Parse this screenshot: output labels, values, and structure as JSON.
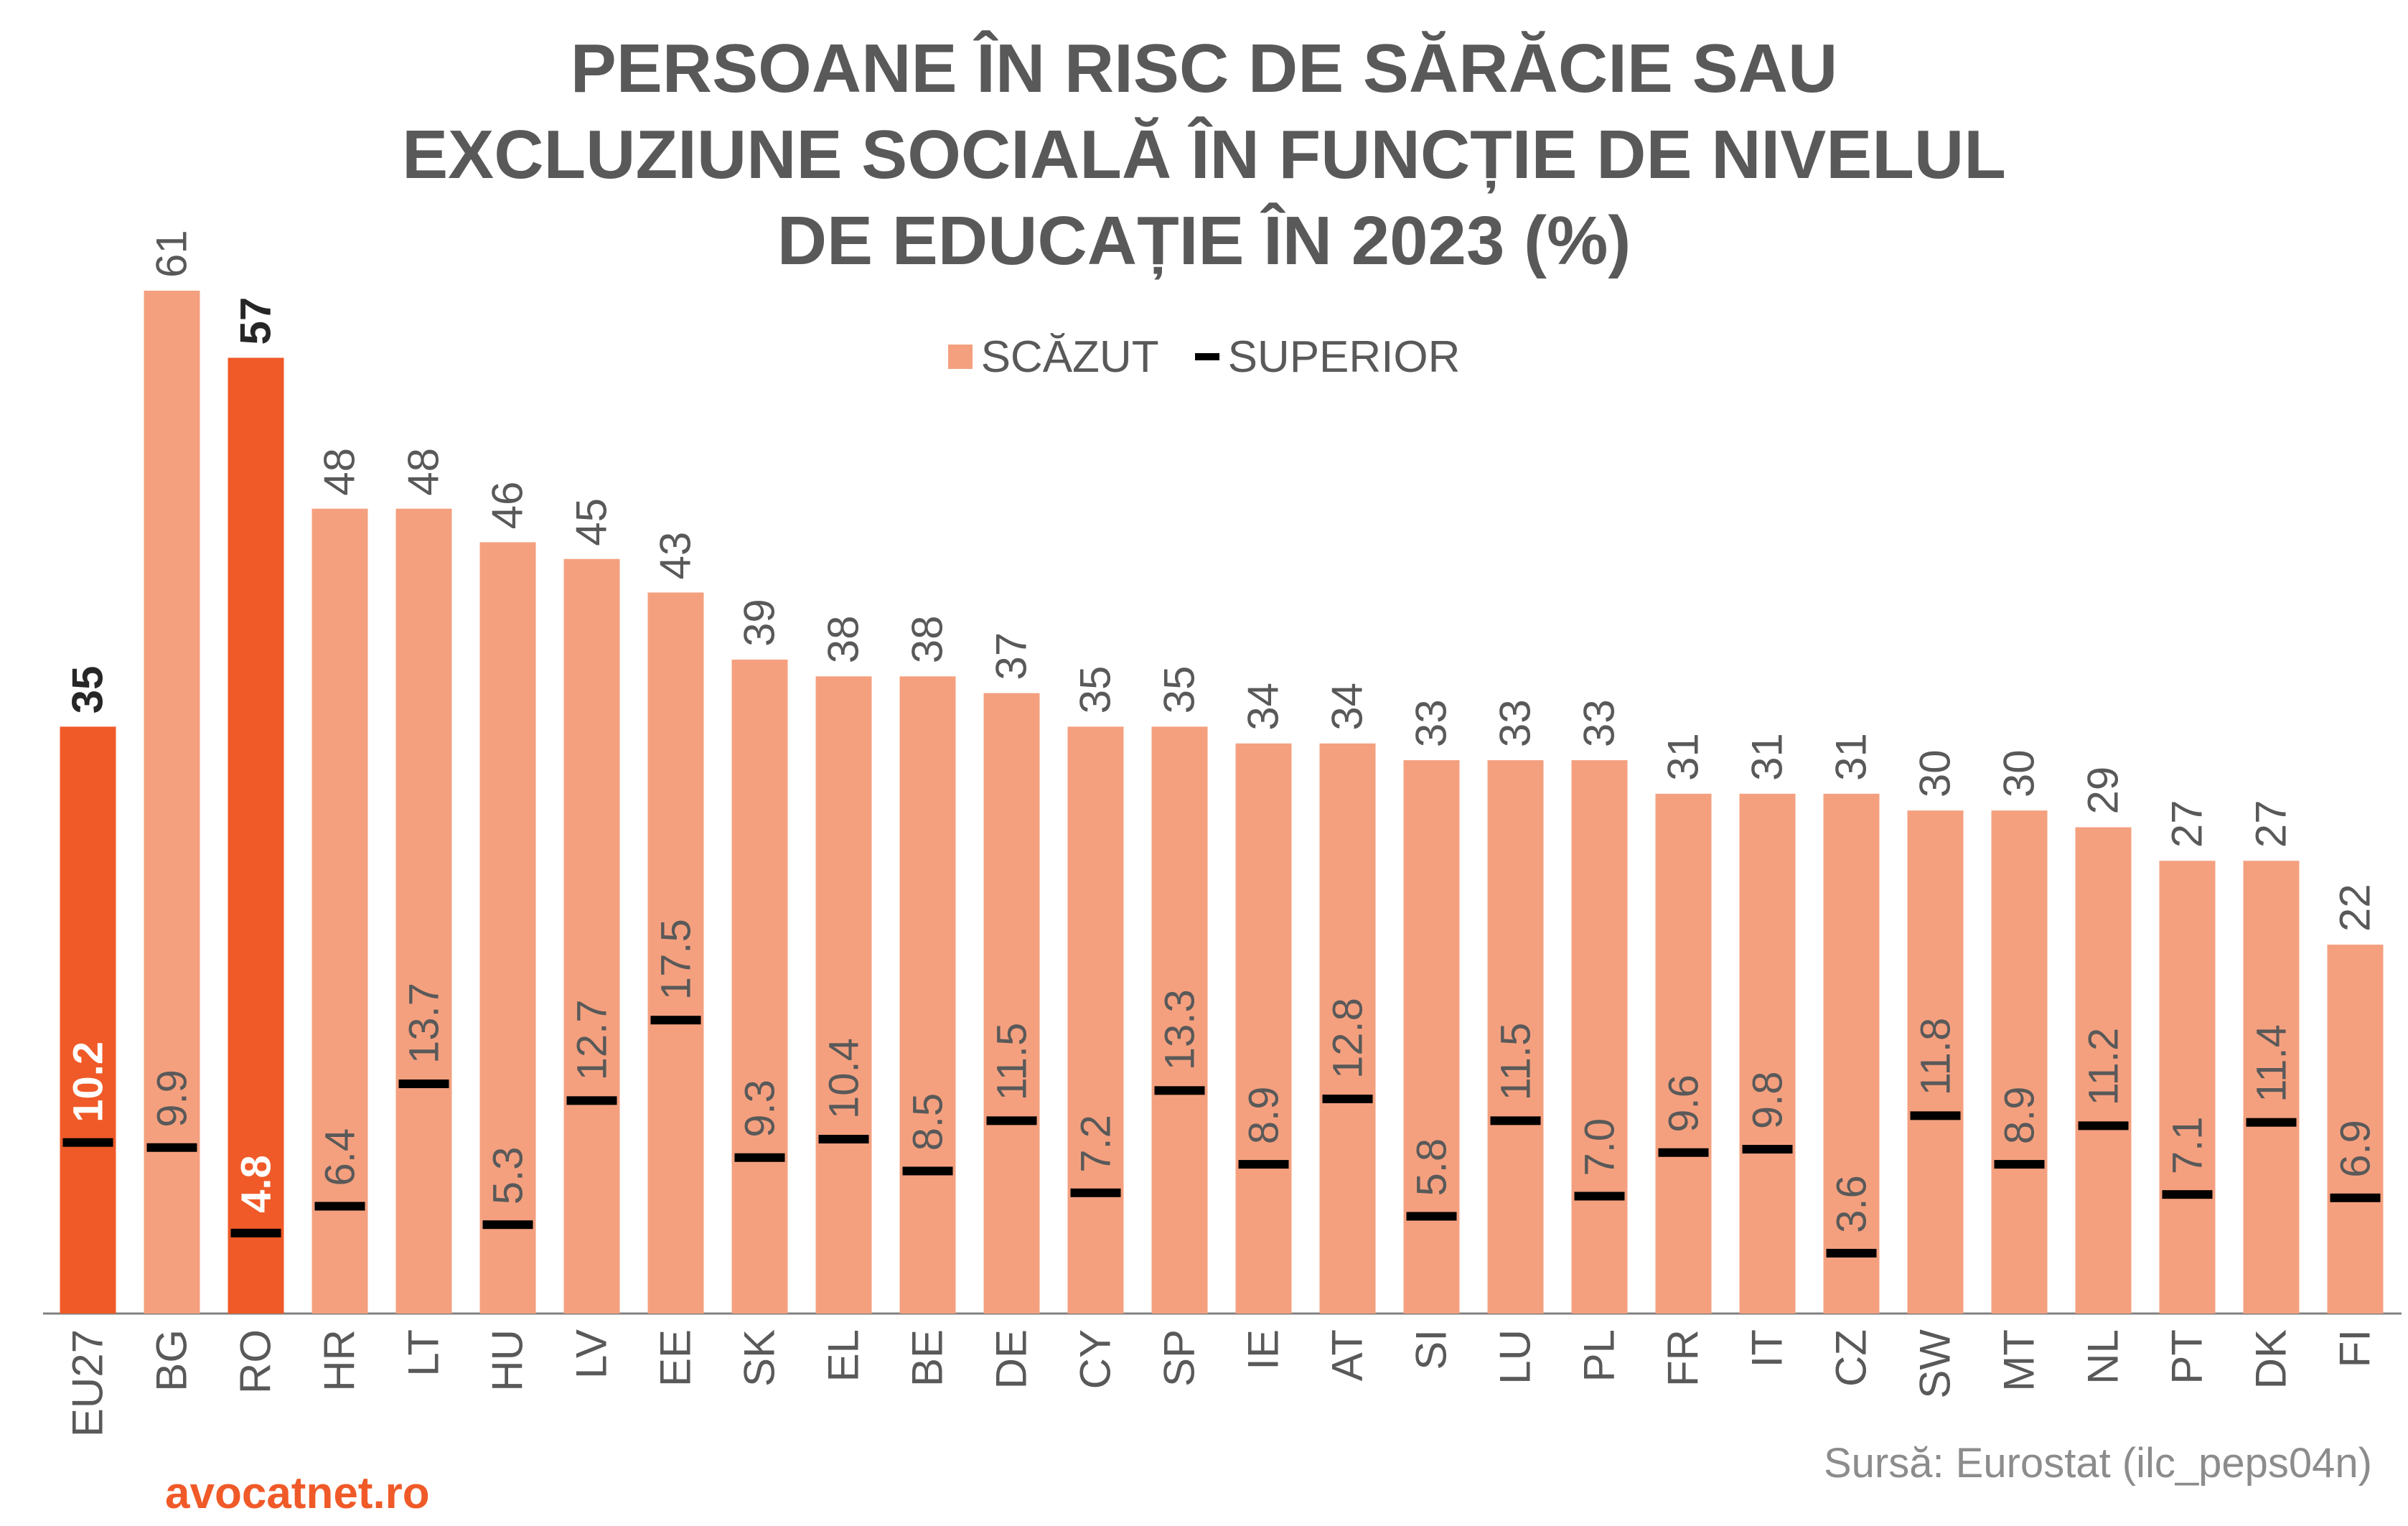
{
  "chart_data": {
    "type": "bar",
    "title_lines": [
      "PERSOANE ÎN RISC DE SĂRĂCIE SAU",
      "EXCLUZIUNE SOCIALĂ ÎN FUNCȚIE DE NIVELUL",
      "DE EDUCAȚIE ÎN 2023 (%)"
    ],
    "categories": [
      "EU27",
      "BG",
      "RO",
      "HR",
      "LT",
      "HU",
      "LV",
      "EE",
      "SK",
      "EL",
      "BE",
      "DE",
      "CY",
      "SP",
      "IE",
      "AT",
      "SI",
      "LU",
      "PL",
      "FR",
      "IT",
      "CZ",
      "SW",
      "MT",
      "NL",
      "PT",
      "DK",
      "FI"
    ],
    "series": [
      {
        "name": "SCĂZUT",
        "values": [
          35,
          61,
          57,
          48,
          48,
          46,
          45,
          43,
          39,
          38,
          38,
          37,
          35,
          35,
          34,
          34,
          33,
          33,
          33,
          31,
          31,
          31,
          30,
          30,
          29,
          27,
          27,
          22
        ],
        "labels": [
          "35",
          "61",
          "57",
          "48",
          "48",
          "46",
          "45",
          "43",
          "39",
          "38",
          "38",
          "37",
          "35",
          "35",
          "34",
          "34",
          "33",
          "33",
          "33",
          "31",
          "31",
          "31",
          "30",
          "30",
          "29",
          "27",
          "27",
          "22"
        ]
      },
      {
        "name": "SUPERIOR",
        "values": [
          10.2,
          9.9,
          4.8,
          6.4,
          13.7,
          5.3,
          12.7,
          17.5,
          9.3,
          10.4,
          8.5,
          11.5,
          7.2,
          13.3,
          8.9,
          12.8,
          5.8,
          11.5,
          7.0,
          9.6,
          9.8,
          3.6,
          11.8,
          8.9,
          11.2,
          7.1,
          11.4,
          6.9
        ],
        "labels": [
          "10.2",
          "9.9",
          "4.8",
          "6.4",
          "13.7",
          "5.3",
          "12.7",
          "17.5",
          "9.3",
          "10.4",
          "8.5",
          "11.5",
          "7.2",
          "13.3",
          "8.9",
          "12.8",
          "5.8",
          "11.5",
          "7.0",
          "9.6",
          "9.8",
          "3.6",
          "11.8",
          "8.9",
          "11.2",
          "7.1",
          "11.4",
          "6.9"
        ]
      }
    ],
    "highlight_categories": [
      "EU27",
      "RO"
    ],
    "legend_position": "top-center",
    "grid": false,
    "ylim": [
      0,
      61
    ],
    "colors": {
      "bar": "#F4A07F",
      "bar_highlight": "#F05A28",
      "marker": "#000000",
      "text": "#595959",
      "axis": "#808080"
    }
  },
  "footer": {
    "source": "Sursă: Eurostat (ilc_peps04n)",
    "brand": "avocatnet.ro"
  }
}
